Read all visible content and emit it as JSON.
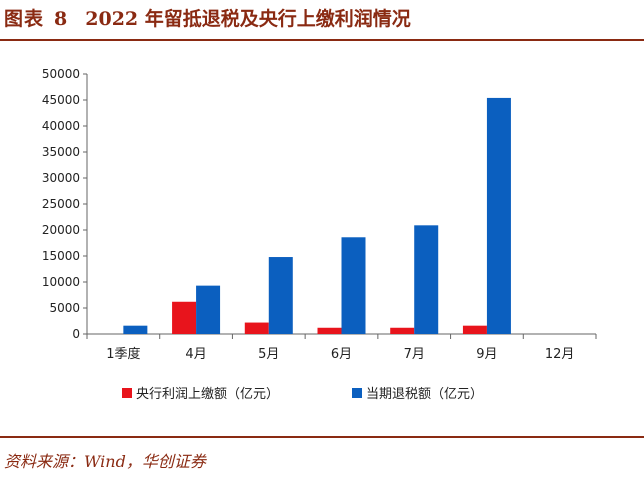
{
  "figure": {
    "title_lead": "图表",
    "title_num": "8",
    "title_text": "2022 年留抵退税及央行上缴利润情况",
    "source": "资料来源：Wind，华创证券"
  },
  "colors": {
    "accent": "#8a2a12",
    "series1": "#e8141c",
    "series2": "#0b5fbf"
  },
  "chart_data": {
    "type": "bar",
    "title": "",
    "xlabel": "",
    "ylabel": "",
    "ylim": [
      0,
      50000
    ],
    "yticks": [
      0,
      5000,
      10000,
      15000,
      20000,
      25000,
      30000,
      35000,
      40000,
      45000,
      50000
    ],
    "categories": [
      "1季度",
      "4月",
      "5月",
      "6月",
      "7月",
      "9月",
      "12月"
    ],
    "series": [
      {
        "name": "央行利润上缴额（亿元）",
        "values": [
          0,
          6200,
          2200,
          1200,
          1200,
          1600,
          0
        ]
      },
      {
        "name": "当期退税额（亿元）",
        "values": [
          1600,
          9300,
          14800,
          18600,
          20900,
          45400,
          0
        ]
      }
    ],
    "grid": false,
    "legend_position": "bottom"
  }
}
